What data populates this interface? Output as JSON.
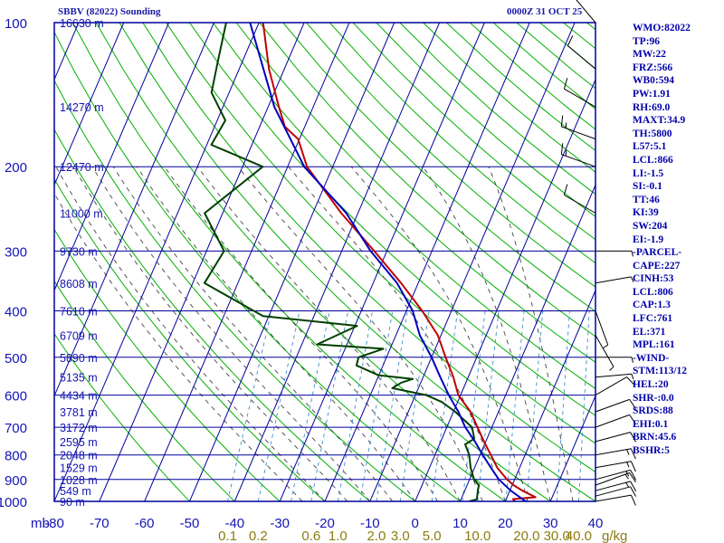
{
  "header": {
    "station": "SBBV (82022) Sounding",
    "valid_time": "0000Z 31 OCT 25"
  },
  "colors": {
    "frame": "#00009c",
    "axis_text": "#1414b4",
    "isotherm": "#00009c",
    "dry_adiabat": "#00b000",
    "moist_adiabat": "#444444",
    "mixing_ratio": "#3a8fd0",
    "mixing_text": "#8c7c10",
    "temperature": "#c00000",
    "dewpoint": "#004000",
    "parcel": "#0000c0",
    "wind": "#000000",
    "stats_text": "#0000aa"
  },
  "stats": [
    "WMO:82022",
    "TP:96",
    "MW:22",
    "FRZ:566",
    "WB0:594",
    "PW:1.91",
    "RH:69.0",
    "MAXT:34.9",
    "TH:5800",
    "L57:5.1",
    "LCL:866",
    "LI:-1.5",
    "SI:-0.1",
    "TT:46",
    "KI:39",
    "SW:204",
    "EI:-1.9",
    "-PARCEL-",
    "CAPE:227",
    "CINH:53",
    "LCL:806",
    "CAP:1.3",
    "LFC:761",
    "EL:371",
    "MPL:161",
    "-WIND-",
    "STM:113/12",
    "HEL:20",
    "SHR-:0.0",
    "SRDS:88",
    "EHI:0.1",
    "BRN:45.6",
    "BSHR:5"
  ],
  "chart_data": {
    "type": "skew-t",
    "title": "SBBV (82022) Sounding",
    "valid_time": "0000Z 31 OCT 25",
    "y_axis": {
      "label": "mb",
      "scale": "log",
      "range": [
        1000,
        100
      ],
      "ticks": [
        100,
        200,
        300,
        400,
        500,
        600,
        700,
        800,
        900,
        1000
      ]
    },
    "x_axis": {
      "unit": "C",
      "range_at_1000mb": [
        -80,
        40
      ],
      "ticks": [
        -80,
        -70,
        -60,
        -50,
        -40,
        -30,
        -20,
        -10,
        0,
        10,
        20,
        30,
        40
      ],
      "tick_labels": [
        "-80",
        "-70",
        "-60",
        "-50",
        "-40",
        "-30",
        "-20",
        "-10",
        "0",
        "10",
        "20",
        "30",
        "40"
      ],
      "skew_degrees_per_decade": 45.4
    },
    "heights": [
      {
        "p": 100,
        "label": "16630 m"
      },
      {
        "p": 150,
        "label": "14270 m"
      },
      {
        "p": 200,
        "label": "12470 m"
      },
      {
        "p": 250,
        "label": "11000 m"
      },
      {
        "p": 300,
        "label": "9730 m"
      },
      {
        "p": 350,
        "label": "8608 m"
      },
      {
        "p": 400,
        "label": "7610 m"
      },
      {
        "p": 450,
        "label": "6709 m"
      },
      {
        "p": 500,
        "label": "5890 m"
      },
      {
        "p": 550,
        "label": "5135 m"
      },
      {
        "p": 600,
        "label": "4434 m"
      },
      {
        "p": 650,
        "label": "3781 m"
      },
      {
        "p": 700,
        "label": "3172 m"
      },
      {
        "p": 750,
        "label": "2595 m"
      },
      {
        "p": 800,
        "label": "2048 m"
      },
      {
        "p": 850,
        "label": "1529 m"
      },
      {
        "p": 900,
        "label": "1028 m"
      },
      {
        "p": 950,
        "label": "549 m"
      },
      {
        "p": 1000,
        "label": "90 m"
      }
    ],
    "mixing_ratio_labels": [
      {
        "w": 0.1,
        "label": "0.1"
      },
      {
        "w": 0.2,
        "label": "0.2"
      },
      {
        "w": 0.6,
        "label": "0.6"
      },
      {
        "w": 1.0,
        "label": "1.0"
      },
      {
        "w": 2.0,
        "label": "2.0"
      },
      {
        "w": 3.0,
        "label": "3.0"
      },
      {
        "w": 5.0,
        "label": "5.0"
      },
      {
        "w": 10.0,
        "label": "10.0"
      },
      {
        "w": 20.0,
        "label": "20.0"
      },
      {
        "w": 30.0,
        "label": "30.0"
      },
      {
        "w": 40.0,
        "label": "40.0"
      }
    ],
    "mixing_ratio_unit": "g/kg",
    "series": [
      {
        "name": "Temperature",
        "color": "#c00000",
        "points": [
          [
            1000,
            22.1
          ],
          [
            989,
            21.5
          ],
          [
            980,
            26.3
          ],
          [
            950,
            22.8
          ],
          [
            925,
            20.3
          ],
          [
            900,
            18.3
          ],
          [
            850,
            15.0
          ],
          [
            800,
            12.4
          ],
          [
            750,
            9.6
          ],
          [
            700,
            6.8
          ],
          [
            650,
            3.8
          ],
          [
            600,
            -0.5
          ],
          [
            550,
            -3.3
          ],
          [
            500,
            -6.9
          ],
          [
            450,
            -10.7
          ],
          [
            400,
            -16.5
          ],
          [
            350,
            -23.8
          ],
          [
            300,
            -32.8
          ],
          [
            250,
            -43.7
          ],
          [
            200,
            -55.7
          ],
          [
            175,
            -60.3
          ],
          [
            165,
            -64.4
          ],
          [
            150,
            -67.6
          ],
          [
            125,
            -73.4
          ],
          [
            100,
            -79.1
          ]
        ]
      },
      {
        "name": "Dewpoint",
        "color": "#004000",
        "points": [
          [
            1000,
            12.0
          ],
          [
            990,
            13.5
          ],
          [
            950,
            12.9
          ],
          [
            925,
            12.6
          ],
          [
            900,
            11.0
          ],
          [
            850,
            9.1
          ],
          [
            800,
            7.6
          ],
          [
            760,
            5.7
          ],
          [
            740,
            7.2
          ],
          [
            700,
            5.6
          ],
          [
            650,
            0.4
          ],
          [
            620,
            -3.5
          ],
          [
            600,
            -7.6
          ],
          [
            580,
            -15.8
          ],
          [
            565,
            -14.3
          ],
          [
            555,
            -12.1
          ],
          [
            545,
            -20.1
          ],
          [
            520,
            -25.9
          ],
          [
            500,
            -26.2
          ],
          [
            480,
            -21.5
          ],
          [
            470,
            -36.6
          ],
          [
            430,
            -29.5
          ],
          [
            410,
            -51.3
          ],
          [
            350,
            -67.4
          ],
          [
            300,
            -66.1
          ],
          [
            250,
            -74.0
          ],
          [
            200,
            -65.5
          ],
          [
            180,
            -79.0
          ],
          [
            160,
            -78.2
          ],
          [
            140,
            -83.9
          ],
          [
            120,
            -85.5
          ],
          [
            100,
            -87.3
          ]
        ]
      },
      {
        "name": "Parcel",
        "color": "#0000c0",
        "points": [
          [
            1000,
            24.5
          ],
          [
            950,
            20.2
          ],
          [
            900,
            16.5
          ],
          [
            850,
            13.6
          ],
          [
            800,
            10.6
          ],
          [
            750,
            7.6
          ],
          [
            700,
            4.1
          ],
          [
            650,
            1.1
          ],
          [
            600,
            -2.6
          ],
          [
            550,
            -6.2
          ],
          [
            500,
            -10.0
          ],
          [
            450,
            -14.7
          ],
          [
            400,
            -18.6
          ],
          [
            350,
            -24.7
          ],
          [
            300,
            -33.6
          ],
          [
            250,
            -42.6
          ],
          [
            200,
            -56.3
          ],
          [
            150,
            -68.6
          ],
          [
            100,
            -82.0
          ]
        ]
      }
    ],
    "wind_profile": [
      {
        "p": 1000,
        "dir": 80,
        "spd": 10
      },
      {
        "p": 975,
        "dir": 75,
        "spd": 12
      },
      {
        "p": 950,
        "dir": 75,
        "spd": 15
      },
      {
        "p": 925,
        "dir": 70,
        "spd": 15
      },
      {
        "p": 900,
        "dir": 75,
        "spd": 15
      },
      {
        "p": 850,
        "dir": 80,
        "spd": 15
      },
      {
        "p": 800,
        "dir": 80,
        "spd": 15
      },
      {
        "p": 750,
        "dir": 75,
        "spd": 10
      },
      {
        "p": 700,
        "dir": 70,
        "spd": 10
      },
      {
        "p": 650,
        "dir": 70,
        "spd": 10
      },
      {
        "p": 600,
        "dir": 60,
        "spd": 10
      },
      {
        "p": 550,
        "dir": 85,
        "spd": 5
      },
      {
        "p": 500,
        "dir": 90,
        "spd": 5
      },
      {
        "p": 450,
        "dir": 150,
        "spd": 5
      },
      {
        "p": 400,
        "dir": 160,
        "spd": 5
      },
      {
        "p": 350,
        "dir": 80,
        "spd": 5
      },
      {
        "p": 300,
        "dir": 90,
        "spd": 5
      },
      {
        "p": 250,
        "dir": 300,
        "spd": 10
      },
      {
        "p": 200,
        "dir": 290,
        "spd": 15
      },
      {
        "p": 175,
        "dir": 290,
        "spd": 15
      },
      {
        "p": 150,
        "dir": 300,
        "spd": 10
      },
      {
        "p": 125,
        "dir": 310,
        "spd": 10
      },
      {
        "p": 100,
        "dir": 320,
        "spd": 15
      }
    ]
  }
}
